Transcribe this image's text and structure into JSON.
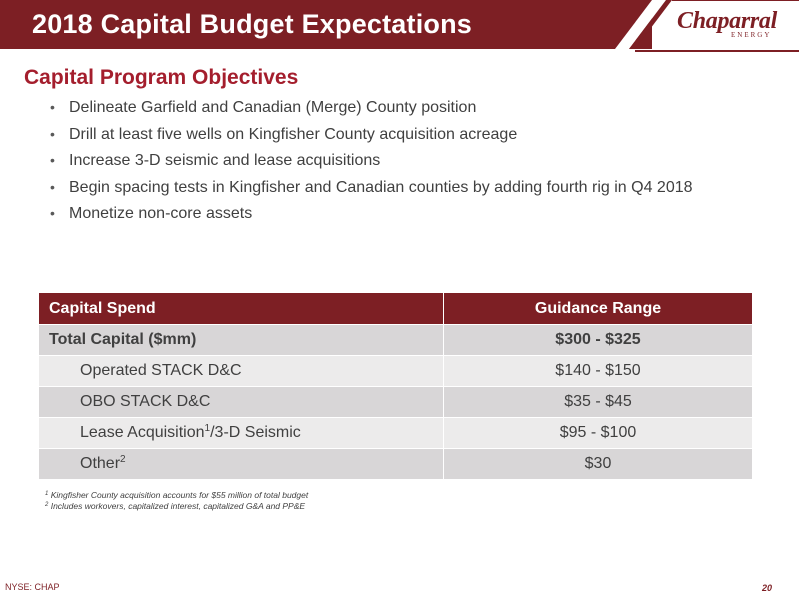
{
  "header": {
    "title": "2018 Capital Budget Expectations",
    "logo_text": "Chaparral",
    "logo_subtext": "ENERGY",
    "brand_color": "#7d1f24"
  },
  "section": {
    "title": "Capital Program Objectives",
    "title_color": "#a41e2d"
  },
  "bullets": [
    "Delineate Garfield and Canadian (Merge) County position",
    "Drill at least five wells on Kingfisher County acquisition acreage",
    "Increase 3-D seismic and lease acquisitions",
    "Begin spacing tests in Kingfisher and Canadian counties by adding fourth rig in Q4 2018",
    "Monetize non-core assets"
  ],
  "table": {
    "headers": [
      "Capital Spend",
      "Guidance Range"
    ],
    "rows": [
      {
        "label": "Total Capital ($mm)",
        "value": "$300 - $325"
      },
      {
        "label": "Operated STACK D&C",
        "value": "$140 - $150"
      },
      {
        "label": "OBO STACK D&C",
        "value": "$35 - $45"
      },
      {
        "label_pre": "Lease Acquisition",
        "label_sup": "1",
        "label_post": "/3-D Seismic",
        "value": "$95 - $100"
      },
      {
        "label_pre": "Other",
        "label_sup": "2",
        "value": "$30"
      }
    ]
  },
  "footnotes": [
    {
      "marker": "1",
      "text": "Kingfisher County acquisition accounts for $55 million of total budget"
    },
    {
      "marker": "2",
      "text": "Includes workovers, capitalized interest, capitalized G&A and PP&E"
    }
  ],
  "footer": {
    "ticker": "NYSE: CHAP",
    "page_number": "20"
  }
}
